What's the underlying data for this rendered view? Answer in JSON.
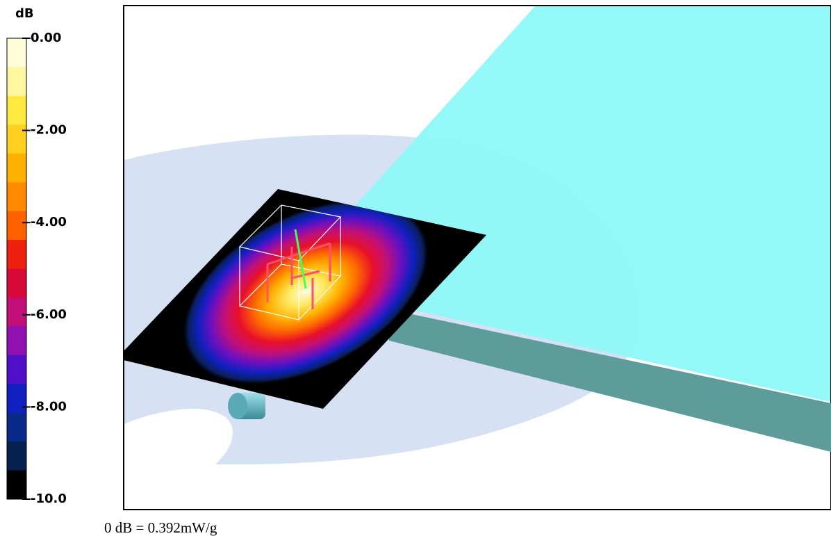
{
  "colorbar": {
    "unit": "dB",
    "ticks": [
      "0.00",
      "-2.00",
      "-4.00",
      "-6.00",
      "-8.00",
      "-10.0"
    ]
  },
  "footnote": "0 dB = 0.392mW/g"
}
